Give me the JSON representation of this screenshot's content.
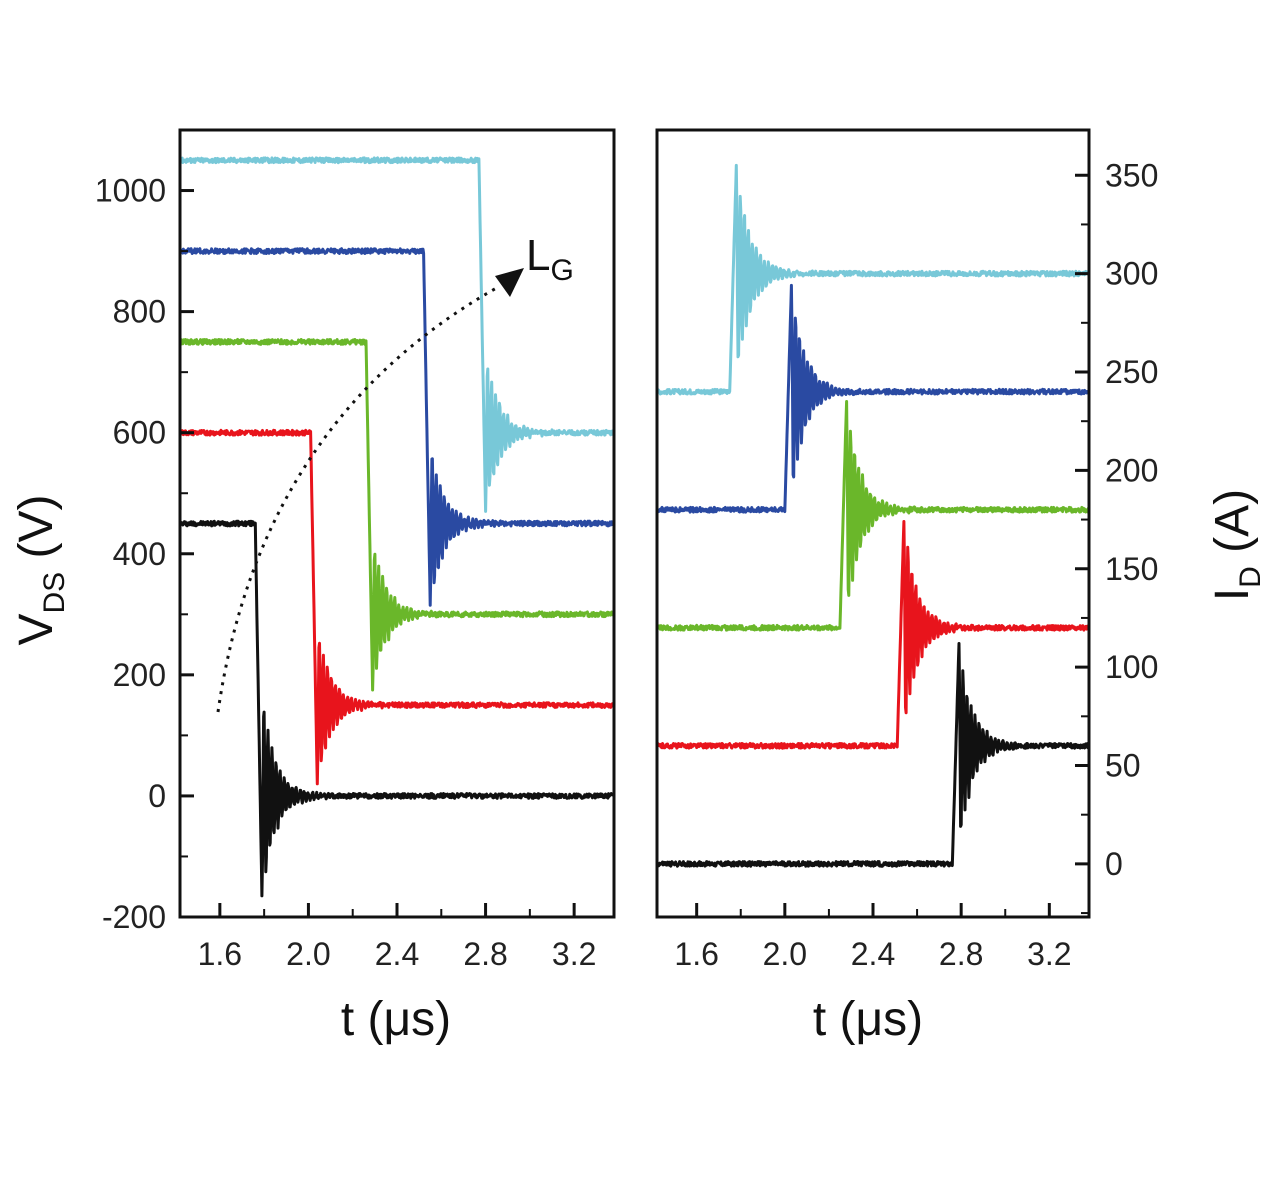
{
  "chart_data": [
    {
      "type": "line",
      "panel": "left",
      "x_tick_labels": [
        "1.6",
        "2.0",
        "2.4",
        "2.8",
        "3.2"
      ],
      "y_tick_labels": [
        "-200",
        "0",
        "200",
        "400",
        "600",
        "800",
        "1000"
      ],
      "xlabel": "t (μs)",
      "ylabel_main": "V",
      "ylabel_sub": "DS",
      "ylabel_unit": " (V)",
      "xlim": [
        1.42,
        3.38
      ],
      "ylim": [
        -200,
        1100
      ],
      "annotation": {
        "main": "L",
        "sub": "G"
      },
      "series": [
        {
          "color": "#111111",
          "switch_time": 1.76,
          "v_before": 450,
          "v_after": 0,
          "min_after": -165,
          "osc_amplitude": 150
        },
        {
          "color": "#e8141c",
          "switch_time": 2.01,
          "v_before": 600,
          "v_after": 150,
          "min_after": 20,
          "osc_amplitude": 120
        },
        {
          "color": "#6ab72a",
          "switch_time": 2.26,
          "v_before": 750,
          "v_after": 300,
          "min_after": 175,
          "osc_amplitude": 120
        },
        {
          "color": "#2a4aa2",
          "switch_time": 2.52,
          "v_before": 900,
          "v_after": 450,
          "min_after": 315,
          "osc_amplitude": 120
        },
        {
          "color": "#78c8d8",
          "switch_time": 2.77,
          "v_before": 1050,
          "v_after": 600,
          "min_after": 470,
          "osc_amplitude": 120
        }
      ]
    },
    {
      "type": "line",
      "panel": "right",
      "x_tick_labels": [
        "1.6",
        "2.0",
        "2.4",
        "2.8",
        "3.2"
      ],
      "y_tick_labels": [
        "0",
        "50",
        "100",
        "150",
        "200",
        "250",
        "300",
        "350"
      ],
      "xlabel": "t (μs)",
      "ylabel_main": "I",
      "ylabel_sub": "D",
      "ylabel_unit": " (A)",
      "xlim": [
        1.42,
        3.38
      ],
      "ylim": [
        -27,
        373
      ],
      "series": [
        {
          "color": "#111111",
          "switch_time": 2.76,
          "i_before": 0,
          "i_after": 60,
          "peak": 112,
          "osc_amplitude": 30
        },
        {
          "color": "#e8141c",
          "switch_time": 2.51,
          "i_before": 60,
          "i_after": 120,
          "peak": 174,
          "osc_amplitude": 28
        },
        {
          "color": "#6ab72a",
          "switch_time": 2.25,
          "i_before": 120,
          "i_after": 180,
          "peak": 235,
          "osc_amplitude": 28
        },
        {
          "color": "#2a4aa2",
          "switch_time": 2.0,
          "i_before": 180,
          "i_after": 240,
          "peak": 294,
          "osc_amplitude": 28
        },
        {
          "color": "#78c8d8",
          "switch_time": 1.75,
          "i_before": 240,
          "i_after": 300,
          "peak": 355,
          "osc_amplitude": 32
        }
      ]
    }
  ]
}
